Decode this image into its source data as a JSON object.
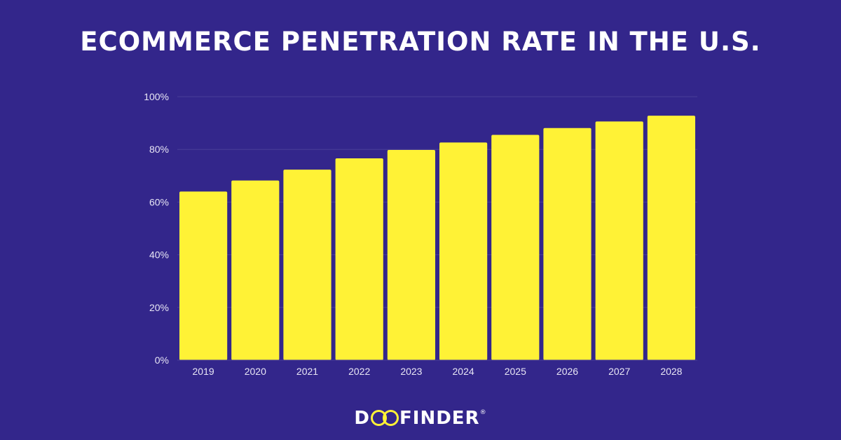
{
  "colors": {
    "background": "#33268b",
    "bar": "#fff236",
    "grid": "#4a3f9a",
    "title": "#ffffff",
    "tick": "#e8e6f5"
  },
  "logo": {
    "prefix": "D",
    "suffix": "FINDER",
    "mark": "®",
    "full_text": "DOOFINDER"
  },
  "chart_data": {
    "type": "bar",
    "title": "ECOMMERCE PENETRATION RATE IN THE U.S.",
    "xlabel": "",
    "ylabel": "",
    "categories": [
      "2019",
      "2020",
      "2021",
      "2022",
      "2023",
      "2024",
      "2025",
      "2026",
      "2027",
      "2028"
    ],
    "values": [
      64,
      68.2,
      72.3,
      76.6,
      79.8,
      82.6,
      85.5,
      88.1,
      90.6,
      92.8
    ],
    "ylim": [
      0,
      100
    ],
    "yticks": [
      0,
      20,
      40,
      60,
      80,
      100
    ],
    "ytick_labels": [
      "0%",
      "20%",
      "40%",
      "60%",
      "80%",
      "100%"
    ],
    "grid": true,
    "legend": "none"
  }
}
